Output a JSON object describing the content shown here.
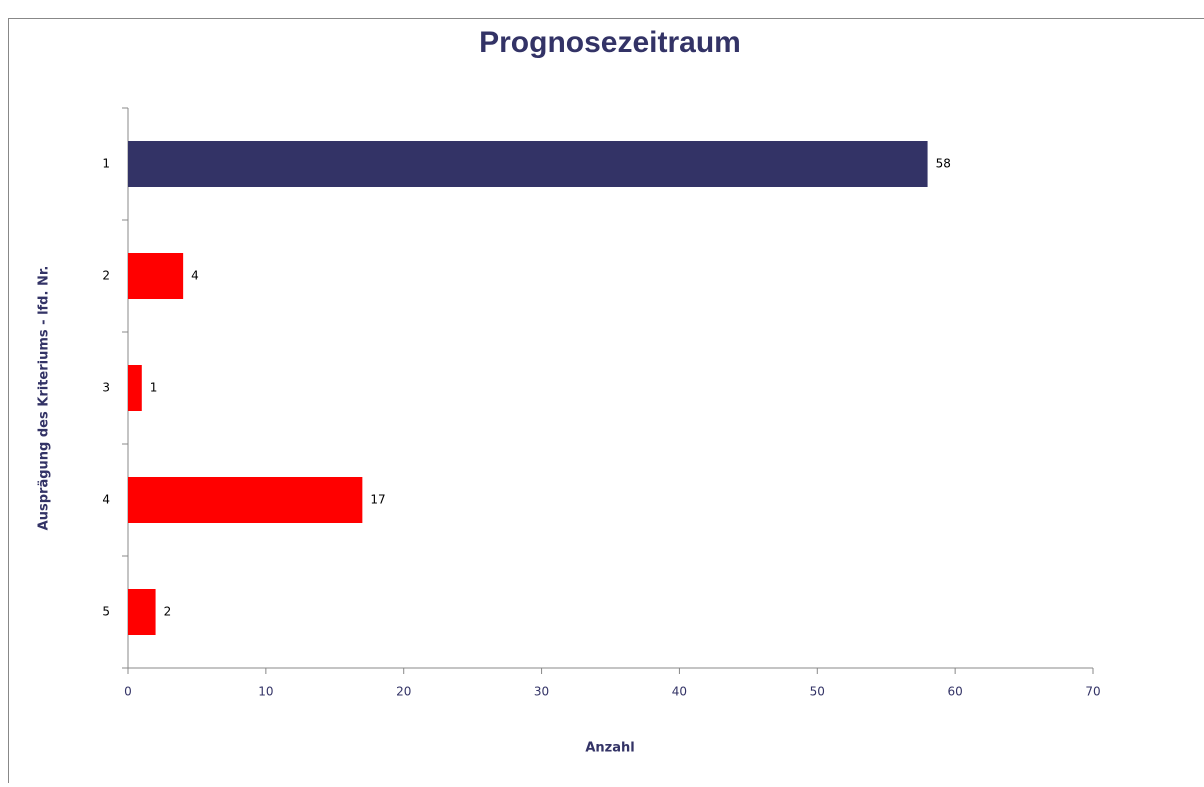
{
  "chart_data": {
    "type": "hbar",
    "title": "Prognosezeitraum",
    "x_label": "Anzahl",
    "y_label": "Ausprägung des Kriteriums - lfd. Nr.",
    "categories": [
      "1",
      "2",
      "3",
      "4",
      "5"
    ],
    "values": [
      58,
      4,
      1,
      17,
      2
    ],
    "colors": [
      "#333366",
      "#ff0000",
      "#ff0000",
      "#ff0000",
      "#ff0000"
    ],
    "xlim": [
      0,
      70
    ],
    "xticks": [
      0,
      10,
      20,
      30,
      40,
      50,
      60,
      70
    ],
    "grid": false
  }
}
